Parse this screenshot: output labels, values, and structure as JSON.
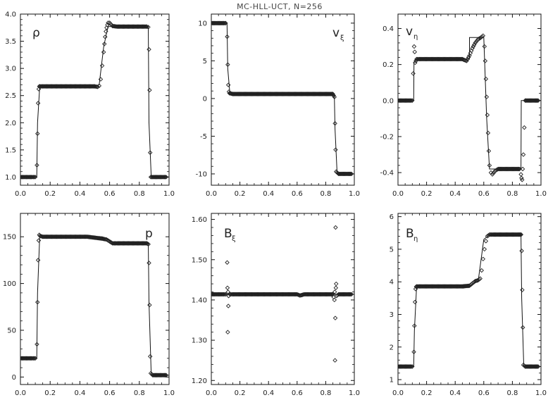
{
  "title": "MC-HLL-UCT, N=256",
  "colors": {
    "ink": "#111111",
    "marker": "#222222",
    "background": "#ffffff"
  },
  "chart_data": [
    {
      "type": "line",
      "label": "ρ",
      "label_sub": "",
      "xlim": [
        0,
        1
      ],
      "ylim": [
        0.85,
        4.0
      ],
      "xticks": [
        "0.0",
        "0.2",
        "0.4",
        "0.6",
        "0.8",
        "1.0"
      ],
      "yticks": [
        "1.0",
        "1.5",
        "2.0",
        "2.5",
        "3.0",
        "3.5",
        "4.0"
      ],
      "ytick_values": [
        1.0,
        1.5,
        2.0,
        2.5,
        3.0,
        3.5,
        4.0
      ],
      "series": [
        {
          "style": "line",
          "x": [
            0.0,
            0.11,
            0.115,
            0.13,
            0.5,
            0.53,
            0.56,
            0.59,
            0.6,
            0.86,
            0.865,
            0.88,
            1.0
          ],
          "y": [
            1.0,
            1.0,
            2.0,
            2.67,
            2.67,
            2.7,
            3.4,
            3.78,
            3.77,
            3.77,
            2.0,
            1.0,
            1.0
          ]
        },
        {
          "style": "markers",
          "x": [
            0.0,
            0.04,
            0.08,
            0.1,
            0.111,
            0.115,
            0.119,
            0.123,
            0.127,
            0.131,
            0.15,
            0.2,
            0.25,
            0.3,
            0.35,
            0.4,
            0.45,
            0.5,
            0.52,
            0.53,
            0.54,
            0.55,
            0.56,
            0.565,
            0.57,
            0.575,
            0.58,
            0.585,
            0.59,
            0.6,
            0.62,
            0.65,
            0.7,
            0.75,
            0.8,
            0.85,
            0.86,
            0.865,
            0.869,
            0.873,
            0.877,
            0.89,
            0.94,
            0.98
          ],
          "y": [
            1.0,
            1.0,
            1.0,
            1.0,
            1.22,
            1.8,
            2.36,
            2.62,
            2.67,
            2.67,
            2.67,
            2.67,
            2.67,
            2.67,
            2.67,
            2.67,
            2.67,
            2.67,
            2.66,
            2.68,
            2.8,
            3.05,
            3.3,
            3.45,
            3.58,
            3.68,
            3.75,
            3.8,
            3.84,
            3.84,
            3.78,
            3.77,
            3.77,
            3.77,
            3.77,
            3.77,
            3.76,
            3.35,
            2.6,
            1.45,
            1.0,
            1.0,
            1.0,
            1.0
          ]
        }
      ]
    },
    {
      "type": "line",
      "label": "v",
      "label_sub": "ξ",
      "xlim": [
        0,
        1
      ],
      "ylim": [
        -11.5,
        11.2
      ],
      "xticks": [
        "0.0",
        "0.2",
        "0.4",
        "0.6",
        "0.8",
        "1.0"
      ],
      "yticks": [
        "-10",
        "-5",
        "0",
        "5",
        "10"
      ],
      "ytick_values": [
        -10,
        -5,
        0,
        5,
        10
      ],
      "series": [
        {
          "style": "line",
          "x": [
            0.0,
            0.11,
            0.115,
            0.13,
            0.86,
            0.865,
            0.88,
            1.0
          ],
          "y": [
            10.0,
            10.0,
            4.0,
            0.6,
            0.6,
            -4.0,
            -10.0,
            -10.0
          ]
        },
        {
          "style": "markers",
          "x": [
            0.0,
            0.04,
            0.08,
            0.1,
            0.111,
            0.115,
            0.119,
            0.123,
            0.127,
            0.15,
            0.2,
            0.25,
            0.3,
            0.35,
            0.4,
            0.45,
            0.5,
            0.55,
            0.6,
            0.65,
            0.7,
            0.75,
            0.8,
            0.85,
            0.861,
            0.865,
            0.869,
            0.873,
            0.89,
            0.94,
            0.98
          ],
          "y": [
            10.0,
            10.0,
            10.0,
            10.0,
            8.2,
            4.5,
            1.8,
            0.9,
            0.7,
            0.6,
            0.6,
            0.6,
            0.6,
            0.6,
            0.6,
            0.6,
            0.6,
            0.6,
            0.6,
            0.6,
            0.6,
            0.6,
            0.6,
            0.6,
            0.2,
            -3.3,
            -6.8,
            -9.7,
            -10.0,
            -10.0,
            -10.0
          ]
        }
      ]
    },
    {
      "type": "line",
      "label": "v",
      "label_sub": "η",
      "xlim": [
        0,
        1
      ],
      "ylim": [
        -0.47,
        0.48
      ],
      "xticks": [
        "0.0",
        "0.2",
        "0.4",
        "0.6",
        "0.8",
        "1.0"
      ],
      "yticks": [
        "-0.4",
        "-0.2",
        "0.0",
        "0.2",
        "0.4"
      ],
      "ytick_values": [
        -0.4,
        -0.2,
        0.0,
        0.2,
        0.4
      ],
      "series": [
        {
          "style": "line",
          "x": [
            0.0,
            0.11,
            0.112,
            0.13,
            0.48,
            0.5,
            0.5,
            0.58,
            0.6,
            0.62,
            0.64,
            0.86,
            0.862,
            0.88,
            1.0
          ],
          "y": [
            0.0,
            0.0,
            0.21,
            0.23,
            0.23,
            0.23,
            0.35,
            0.35,
            0.35,
            -0.1,
            -0.38,
            -0.38,
            0.0,
            0.0,
            0.0
          ]
        },
        {
          "style": "markers",
          "x": [
            0.0,
            0.04,
            0.08,
            0.1,
            0.113,
            0.117,
            0.12,
            0.125,
            0.13,
            0.15,
            0.2,
            0.25,
            0.3,
            0.35,
            0.4,
            0.45,
            0.48,
            0.5,
            0.52,
            0.54,
            0.56,
            0.58,
            0.595,
            0.605,
            0.61,
            0.615,
            0.62,
            0.625,
            0.63,
            0.635,
            0.64,
            0.65,
            0.66,
            0.68,
            0.7,
            0.75,
            0.8,
            0.85,
            0.86,
            0.864,
            0.868,
            0.872,
            0.877,
            0.89,
            0.94,
            0.98
          ],
          "y": [
            0.0,
            0.0,
            0.0,
            0.0,
            0.3,
            0.27,
            0.21,
            0.22,
            0.23,
            0.23,
            0.23,
            0.23,
            0.23,
            0.23,
            0.23,
            0.23,
            0.22,
            0.25,
            0.29,
            0.32,
            0.34,
            0.35,
            0.36,
            0.3,
            0.22,
            0.12,
            0.02,
            -0.08,
            -0.18,
            -0.28,
            -0.36,
            -0.4,
            -0.41,
            -0.39,
            -0.38,
            -0.38,
            -0.38,
            -0.38,
            -0.41,
            -0.43,
            -0.44,
            -0.38,
            -0.3,
            0.0,
            0.0,
            0.0
          ]
        }
      ]
    },
    {
      "type": "line",
      "label": "p",
      "label_sub": "",
      "xlim": [
        0,
        1
      ],
      "ylim": [
        -8,
        175
      ],
      "xticks": [
        "0.0",
        "0.2",
        "0.4",
        "0.6",
        "0.8",
        "1.0"
      ],
      "yticks": [
        "0",
        "50",
        "100",
        "150"
      ],
      "ytick_values": [
        0,
        50,
        100,
        150
      ],
      "series": [
        {
          "style": "line",
          "x": [
            0.0,
            0.11,
            0.115,
            0.13,
            0.55,
            0.58,
            0.62,
            0.86,
            0.865,
            0.88,
            1.0
          ],
          "y": [
            20.0,
            20.0,
            90.0,
            151.0,
            150.0,
            148.0,
            143.0,
            143.0,
            80.0,
            2.0,
            2.0
          ]
        },
        {
          "style": "markers",
          "x": [
            0.0,
            0.04,
            0.08,
            0.1,
            0.111,
            0.115,
            0.119,
            0.123,
            0.127,
            0.131,
            0.15,
            0.2,
            0.25,
            0.3,
            0.35,
            0.4,
            0.45,
            0.5,
            0.55,
            0.58,
            0.6,
            0.62,
            0.65,
            0.7,
            0.75,
            0.8,
            0.85,
            0.861,
            0.865,
            0.869,
            0.873,
            0.877,
            0.89,
            0.94,
            0.98
          ],
          "y": [
            20.0,
            20.0,
            20.0,
            20.0,
            35.0,
            80.0,
            125.0,
            146.0,
            152.0,
            151.0,
            150.0,
            150.0,
            150.0,
            150.0,
            150.0,
            150.0,
            150.0,
            149.0,
            148.0,
            147.0,
            145.0,
            143.0,
            143.0,
            143.0,
            143.0,
            143.0,
            143.0,
            142.0,
            122.0,
            77.0,
            22.0,
            4.0,
            2.0,
            2.0,
            2.0
          ]
        }
      ]
    },
    {
      "type": "line",
      "label": "B",
      "label_sub": "ξ",
      "xlim": [
        0,
        1
      ],
      "ylim": [
        1.19,
        1.615
      ],
      "xticks": [
        "0.0",
        "0.2",
        "0.4",
        "0.6",
        "0.8",
        "1.0"
      ],
      "yticks": [
        "1.20",
        "1.30",
        "1.40",
        "1.50",
        "1.60"
      ],
      "ytick_values": [
        1.2,
        1.3,
        1.4,
        1.5,
        1.6
      ],
      "series": [
        {
          "style": "line",
          "x": [
            0.0,
            0.6,
            0.62,
            0.64,
            1.0
          ],
          "y": [
            1.414,
            1.414,
            1.411,
            1.414,
            1.414
          ]
        },
        {
          "style": "markers",
          "x": [
            0.0,
            0.04,
            0.08,
            0.1,
            0.111,
            0.113,
            0.115,
            0.117,
            0.119,
            0.121,
            0.13,
            0.15,
            0.2,
            0.25,
            0.3,
            0.35,
            0.4,
            0.45,
            0.5,
            0.55,
            0.6,
            0.62,
            0.65,
            0.7,
            0.75,
            0.8,
            0.85,
            0.861,
            0.863,
            0.865,
            0.867,
            0.869,
            0.871,
            0.873,
            0.875,
            0.89,
            0.94,
            0.98
          ],
          "y": [
            1.414,
            1.414,
            1.414,
            1.414,
            1.493,
            1.43,
            1.32,
            1.42,
            1.385,
            1.41,
            1.414,
            1.414,
            1.414,
            1.414,
            1.414,
            1.414,
            1.414,
            1.414,
            1.414,
            1.414,
            1.414,
            1.411,
            1.414,
            1.414,
            1.414,
            1.414,
            1.414,
            1.4,
            1.42,
            1.25,
            1.355,
            1.58,
            1.43,
            1.44,
            1.41,
            1.414,
            1.414,
            1.414
          ]
        }
      ]
    },
    {
      "type": "line",
      "label": "B",
      "label_sub": "η",
      "xlim": [
        0,
        1
      ],
      "ylim": [
        0.85,
        6.1
      ],
      "xticks": [
        "0.0",
        "0.2",
        "0.4",
        "0.6",
        "0.8",
        "1.0"
      ],
      "yticks": [
        "1",
        "2",
        "3",
        "4",
        "5",
        "6"
      ],
      "ytick_values": [
        1,
        2,
        3,
        4,
        5,
        6
      ],
      "series": [
        {
          "style": "line",
          "x": [
            0.0,
            0.11,
            0.115,
            0.13,
            0.5,
            0.54,
            0.56,
            0.6,
            0.64,
            0.86,
            0.865,
            0.88,
            1.0
          ],
          "y": [
            1.4,
            1.4,
            2.5,
            3.85,
            3.85,
            4.0,
            4.0,
            5.3,
            5.45,
            5.45,
            3.5,
            1.4,
            1.4
          ]
        },
        {
          "style": "markers",
          "x": [
            0.0,
            0.04,
            0.08,
            0.1,
            0.111,
            0.115,
            0.119,
            0.123,
            0.127,
            0.131,
            0.15,
            0.2,
            0.25,
            0.3,
            0.35,
            0.4,
            0.45,
            0.5,
            0.52,
            0.54,
            0.56,
            0.575,
            0.585,
            0.595,
            0.605,
            0.615,
            0.625,
            0.64,
            0.66,
            0.7,
            0.75,
            0.8,
            0.85,
            0.861,
            0.865,
            0.869,
            0.873,
            0.877,
            0.89,
            0.94,
            0.98
          ],
          "y": [
            1.4,
            1.4,
            1.4,
            1.4,
            1.85,
            2.65,
            3.38,
            3.78,
            3.85,
            3.86,
            3.86,
            3.86,
            3.86,
            3.86,
            3.86,
            3.86,
            3.86,
            3.88,
            3.95,
            4.02,
            4.05,
            4.1,
            4.35,
            4.7,
            5.0,
            5.25,
            5.4,
            5.45,
            5.45,
            5.45,
            5.45,
            5.45,
            5.45,
            5.45,
            4.95,
            3.75,
            2.6,
            1.45,
            1.4,
            1.4,
            1.4
          ]
        }
      ]
    }
  ]
}
